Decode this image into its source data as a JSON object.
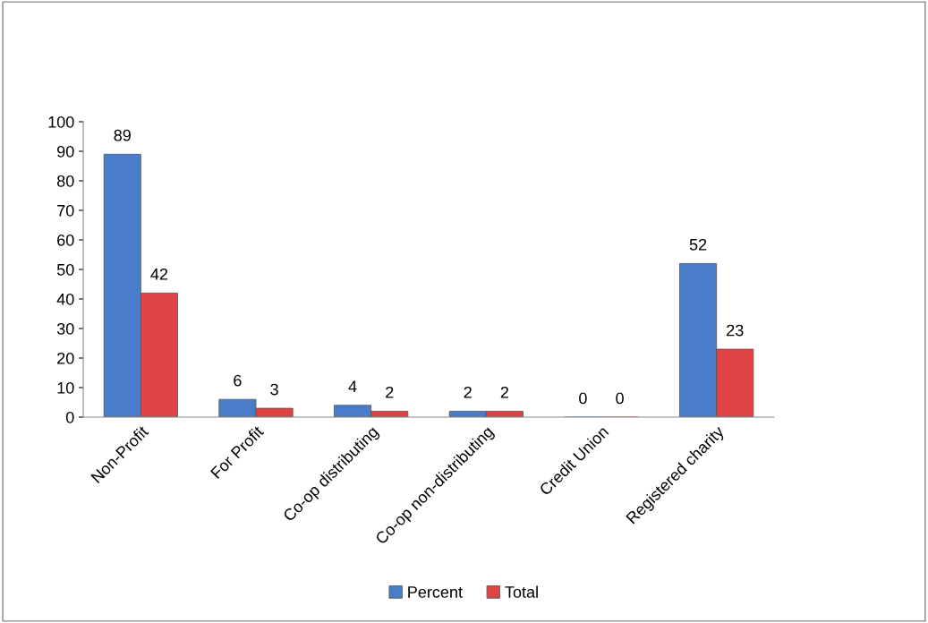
{
  "chart_data": {
    "type": "bar",
    "categories": [
      "Non-Profit",
      "For Profit",
      "Co-op distributing",
      "Co-op non-distributing",
      "Credit Union",
      "Registered charity"
    ],
    "series": [
      {
        "name": "Percent",
        "color": "#4a7dc9",
        "values": [
          89,
          6,
          4,
          2,
          0,
          52
        ]
      },
      {
        "name": "Total",
        "color": "#e04343",
        "values": [
          42,
          3,
          2,
          2,
          0,
          23
        ]
      }
    ],
    "ylim": [
      0,
      100
    ],
    "yticks": [
      0,
      10,
      20,
      30,
      40,
      50,
      60,
      70,
      80,
      90,
      100
    ],
    "data_labels": true,
    "grid": false,
    "legend": "bottom"
  }
}
